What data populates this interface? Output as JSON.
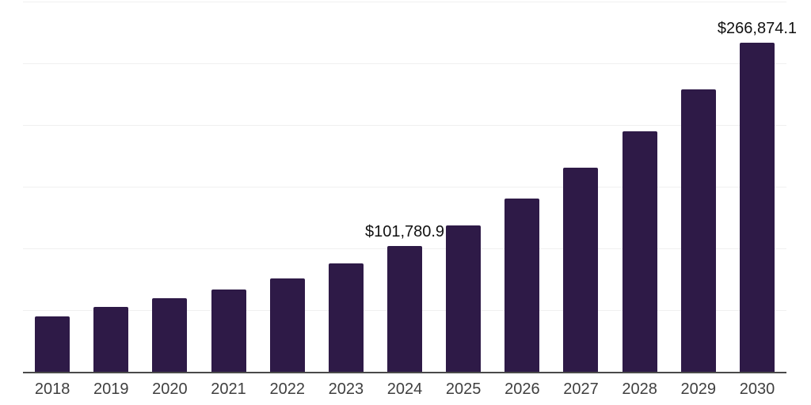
{
  "chart_data": {
    "type": "bar",
    "title": "",
    "xlabel": "",
    "ylabel": "",
    "categories": [
      "2018",
      "2019",
      "2020",
      "2021",
      "2022",
      "2023",
      "2024",
      "2025",
      "2026",
      "2027",
      "2028",
      "2029",
      "2030"
    ],
    "values": [
      45000,
      52500,
      59900,
      66700,
      75600,
      87900,
      101780.9,
      118400,
      140700,
      165600,
      194800,
      228800,
      266874.1
    ],
    "data_labels": {
      "2024": "$101,780.9",
      "2030": "$266,874.1"
    },
    "ylim": [
      0,
      300000
    ],
    "gridline_step": 50000,
    "grid": "horizontal-only",
    "legend": "none",
    "colors": {
      "bar": "#2e1a47",
      "gridline": "#f0f0f0",
      "axis": "#4a4a4a",
      "year_label": "#3f3f3f",
      "data_label": "#111111",
      "background": "#ffffff"
    }
  }
}
